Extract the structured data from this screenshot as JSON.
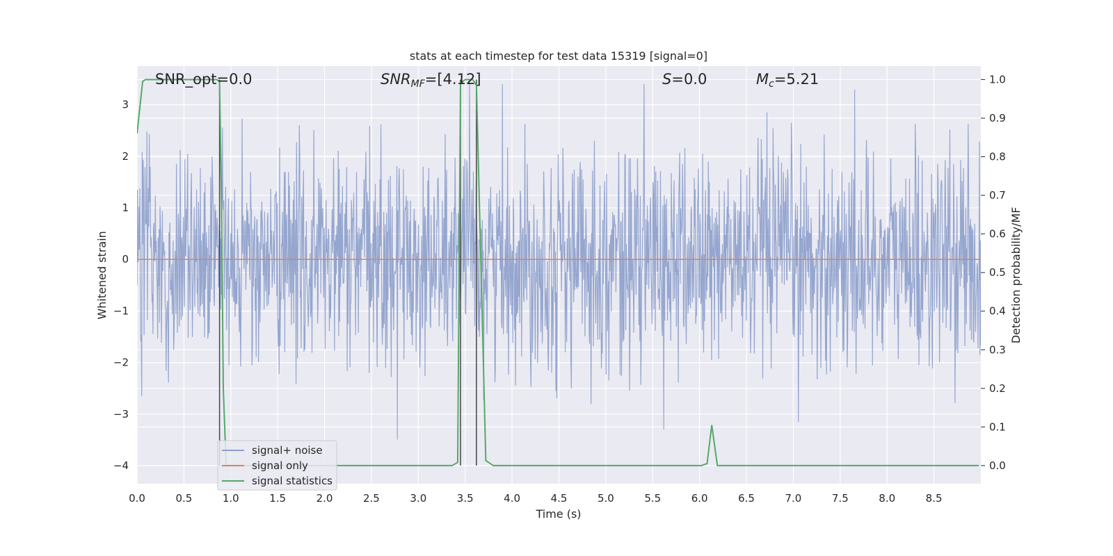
{
  "chart_data": {
    "type": "line",
    "title": "stats at each timestep for test data 15319 [signal=0]",
    "xlabel": "Time (s)",
    "ylabel_left": "Whitened strain",
    "ylabel_right": "Detection probability/MF",
    "xlim": [
      0.0,
      9.0
    ],
    "ylim_left": [
      -4.35,
      3.75
    ],
    "ylim_right": [
      -0.047,
      1.035
    ],
    "x_ticks": [
      "0.0",
      "0.5",
      "1.0",
      "1.5",
      "2.0",
      "2.5",
      "3.0",
      "3.5",
      "4.0",
      "4.5",
      "5.0",
      "5.5",
      "6.0",
      "6.5",
      "7.0",
      "7.5",
      "8.0",
      "8.5"
    ],
    "y_ticks_left": [
      "3",
      "2",
      "1",
      "0",
      "−1",
      "−2",
      "−3",
      "−4"
    ],
    "y_ticks_right": [
      "1.0",
      "0.9",
      "0.8",
      "0.7",
      "0.6",
      "0.5",
      "0.4",
      "0.3",
      "0.2",
      "0.1",
      "0.0"
    ],
    "grid": true,
    "legend_position": "lower-left",
    "annotations": {
      "snr_opt": "SNR_opt=0.0",
      "snr_mf_prefix": "SNR",
      "snr_mf_sub": "MF",
      "snr_mf_value": "=[4.12]",
      "s_prefix": "S",
      "s_value": "=0.0",
      "mc_prefix": "M",
      "mc_sub": "c",
      "mc_value": "=5.21"
    },
    "series": [
      {
        "name": "signal+ noise",
        "axis": "left",
        "color": "#8c9fcb",
        "description_values": "whitened strain noise, approx Gaussian, amplitude mostly within ±2.5",
        "sample_count": 1800,
        "y_range": [
          -4.0,
          3.4
        ]
      },
      {
        "name": "signal only",
        "axis": "left",
        "color": "#dd8452",
        "x": [
          0.0,
          9.0
        ],
        "y": [
          0.0,
          0.0
        ]
      },
      {
        "name": "signal statistics",
        "axis": "right",
        "color": "#55a868",
        "x": [
          0.0,
          0.06,
          0.09,
          0.85,
          0.88,
          0.9,
          0.92,
          0.95,
          3.36,
          3.42,
          3.45,
          3.5,
          3.58,
          3.62,
          3.72,
          3.8,
          6.02,
          6.08,
          6.13,
          6.19,
          8.98
        ],
        "y": [
          0.86,
          0.995,
          1.0,
          1.0,
          0.995,
          0.7,
          0.2,
          0.0,
          0.0,
          0.008,
          0.99,
          1.0,
          1.0,
          0.985,
          0.013,
          0.0,
          0.0,
          0.005,
          0.105,
          0.0,
          0.0
        ]
      }
    ],
    "vertical_lines": [
      0.88,
      3.45,
      3.62
    ],
    "colors": {
      "axes_bg": "#eaeaf2",
      "grid": "#ffffff",
      "vline": "#444444"
    }
  }
}
